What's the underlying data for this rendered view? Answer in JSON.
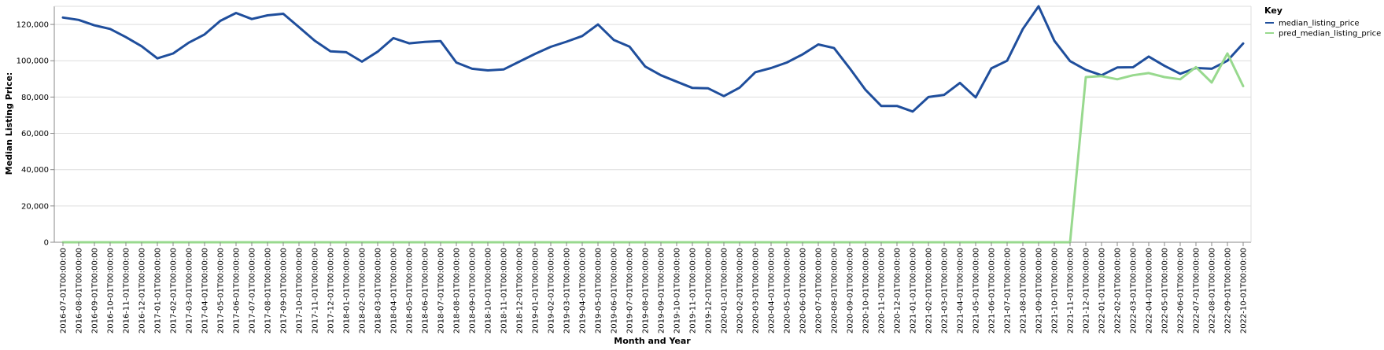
{
  "chart_data": {
    "type": "line",
    "xlabel": "Month and Year",
    "ylabel": "Median Listing Price:",
    "ylim": [
      0,
      130000
    ],
    "yticks": [
      0,
      20000,
      40000,
      60000,
      80000,
      100000,
      120000
    ],
    "ytick_labels": [
      "0",
      "20,000",
      "40,000",
      "60,000",
      "80,000",
      "100,000",
      "120,000"
    ],
    "grid": true,
    "legend": {
      "title": "Key",
      "placement": "top-right"
    },
    "categories": [
      "2016-07-01T00:00:00",
      "2016-08-01T00:00:00",
      "2016-09-01T00:00:00",
      "2016-10-01T00:00:00",
      "2016-11-01T00:00:00",
      "2016-12-01T00:00:00",
      "2017-01-01T00:00:00",
      "2017-02-01T00:00:00",
      "2017-03-01T00:00:00",
      "2017-04-01T00:00:00",
      "2017-05-01T00:00:00",
      "2017-06-01T00:00:00",
      "2017-07-01T00:00:00",
      "2017-08-01T00:00:00",
      "2017-09-01T00:00:00",
      "2017-10-01T00:00:00",
      "2017-11-01T00:00:00",
      "2017-12-01T00:00:00",
      "2018-01-01T00:00:00",
      "2018-02-01T00:00:00",
      "2018-03-01T00:00:00",
      "2018-04-01T00:00:00",
      "2018-05-01T00:00:00",
      "2018-06-01T00:00:00",
      "2018-07-01T00:00:00",
      "2018-08-01T00:00:00",
      "2018-09-01T00:00:00",
      "2018-10-01T00:00:00",
      "2018-11-01T00:00:00",
      "2018-12-01T00:00:00",
      "2019-01-01T00:00:00",
      "2019-02-01T00:00:00",
      "2019-03-01T00:00:00",
      "2019-04-01T00:00:00",
      "2019-05-01T00:00:00",
      "2019-06-01T00:00:00",
      "2019-07-01T00:00:00",
      "2019-08-01T00:00:00",
      "2019-09-01T00:00:00",
      "2019-10-01T00:00:00",
      "2019-11-01T00:00:00",
      "2019-12-01T00:00:00",
      "2020-01-01T00:00:00",
      "2020-02-01T00:00:00",
      "2020-03-01T00:00:00",
      "2020-04-01T00:00:00",
      "2020-05-01T00:00:00",
      "2020-06-01T00:00:00",
      "2020-07-01T00:00:00",
      "2020-08-01T00:00:00",
      "2020-09-01T00:00:00",
      "2020-10-01T00:00:00",
      "2020-11-01T00:00:00",
      "2020-12-01T00:00:00",
      "2021-01-01T00:00:00",
      "2021-02-01T00:00:00",
      "2021-03-01T00:00:00",
      "2021-04-01T00:00:00",
      "2021-05-01T00:00:00",
      "2021-06-01T00:00:00",
      "2021-07-01T00:00:00",
      "2021-08-01T00:00:00",
      "2021-09-01T00:00:00",
      "2021-10-01T00:00:00",
      "2021-11-01T00:00:00",
      "2021-12-01T00:00:00",
      "2022-01-01T00:00:00",
      "2022-02-01T00:00:00",
      "2022-03-01T00:00:00",
      "2022-04-01T00:00:00",
      "2022-05-01T00:00:00",
      "2022-06-01T00:00:00",
      "2022-07-01T00:00:00",
      "2022-08-01T00:00:00",
      "2022-09-01T00:00:00",
      "2022-10-01T00:00:00"
    ],
    "series": [
      {
        "name": "median_listing_price",
        "color": "#1f4e9c",
        "values": [
          123800,
          122500,
          119500,
          117500,
          113000,
          108000,
          101300,
          104000,
          110000,
          114500,
          122000,
          126300,
          123000,
          125000,
          125900,
          118500,
          111000,
          105200,
          104700,
          99500,
          105000,
          112500,
          109600,
          110400,
          110800,
          99000,
          95600,
          94700,
          95200,
          99500,
          103800,
          107700,
          110500,
          113600,
          120000,
          111500,
          107800,
          96800,
          92000,
          88500,
          85000,
          84800,
          80500,
          85200,
          93700,
          96000,
          99000,
          103500,
          109000,
          107000,
          95800,
          84000,
          75100,
          75100,
          72000,
          80000,
          81200,
          87800,
          79800,
          95800,
          100000,
          117500,
          130000,
          111000,
          99800,
          95000,
          92000,
          96300,
          96400,
          102300,
          97200,
          92800,
          96000,
          95600,
          100000,
          109500
        ]
      },
      {
        "name": "pred_median_listing_price",
        "color": "#98d98e",
        "values": [
          0,
          0,
          0,
          0,
          0,
          0,
          0,
          0,
          0,
          0,
          0,
          0,
          0,
          0,
          0,
          0,
          0,
          0,
          0,
          0,
          0,
          0,
          0,
          0,
          0,
          0,
          0,
          0,
          0,
          0,
          0,
          0,
          0,
          0,
          0,
          0,
          0,
          0,
          0,
          0,
          0,
          0,
          0,
          0,
          0,
          0,
          0,
          0,
          0,
          0,
          0,
          0,
          0,
          0,
          0,
          0,
          0,
          0,
          0,
          0,
          0,
          0,
          0,
          0,
          0,
          91000,
          91500,
          89800,
          92000,
          93200,
          91000,
          89800,
          96500,
          88000,
          104000,
          86000
        ]
      }
    ]
  }
}
